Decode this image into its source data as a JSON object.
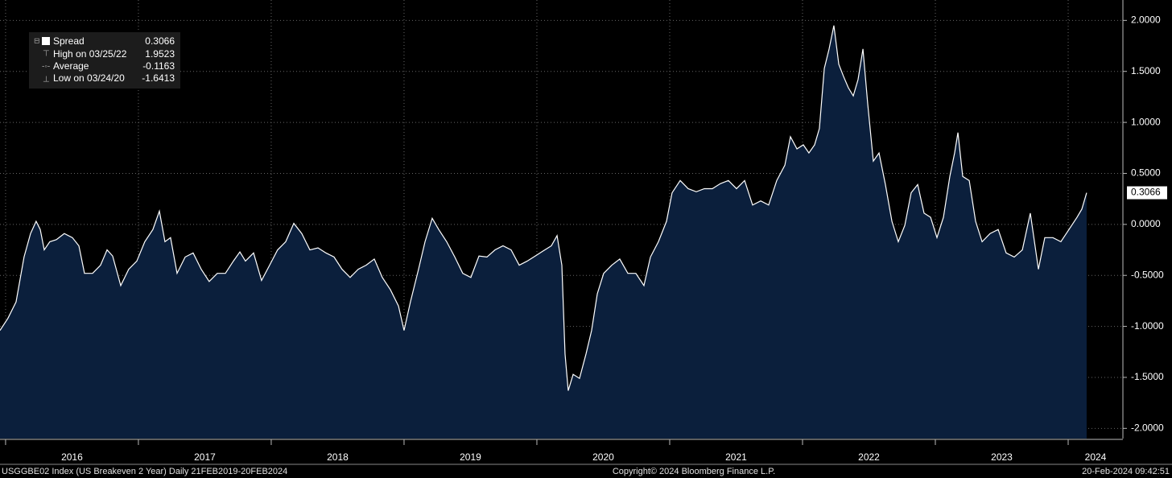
{
  "chart_data": {
    "type": "area",
    "legend": {
      "name": "Spread",
      "value": "0.3066",
      "high_label": "High on 03/25/22",
      "high_value": "1.9523",
      "average_label": "Average",
      "average_value": "-0.1163",
      "low_label": "Low on 03/24/20",
      "low_value": "-1.6413"
    },
    "last_value_label": "0.3066",
    "footer_left": "USGGBE02 Index (US Breakeven 2 Year)  Daily 21FEB2019-20FEB2024",
    "footer_center": "Copyright© 2024 Bloomberg Finance L.P.",
    "footer_right": "20-Feb-2024 09:42:51",
    "color": "#ffffff",
    "fill": "#0b1f3c",
    "grid": true,
    "xlim": [
      2015.958,
      2024.412
    ],
    "xticks": [
      2016,
      2017,
      2018,
      2019,
      2020,
      2021,
      2022,
      2023,
      2024
    ],
    "ylim": [
      -2.1,
      2.2
    ],
    "yticks": [
      {
        "value": -2,
        "label": "-2.0000"
      },
      {
        "value": -1.5,
        "label": "-1.5000"
      },
      {
        "value": -1,
        "label": "-1.0000"
      },
      {
        "value": -0.5,
        "label": "-0.5000"
      },
      {
        "value": 0,
        "label": "0.0000"
      },
      {
        "value": 0.5,
        "label": "0.5000"
      },
      {
        "value": 1,
        "label": "1.0000"
      },
      {
        "value": 1.5,
        "label": "1.5000"
      },
      {
        "value": 2,
        "label": "2.0000"
      }
    ],
    "series": [
      {
        "name": "Spread",
        "x": [
          2015.958,
          2016.018,
          2016.079,
          2016.139,
          2016.188,
          2016.23,
          2016.261,
          2016.291,
          2016.333,
          2016.382,
          2016.442,
          2016.503,
          2016.552,
          2016.594,
          2016.655,
          2016.715,
          2016.764,
          2016.806,
          2016.867,
          2016.927,
          2016.988,
          2017.048,
          2017.109,
          2017.158,
          2017.2,
          2017.242,
          2017.291,
          2017.352,
          2017.412,
          2017.473,
          2017.533,
          2017.594,
          2017.655,
          2017.715,
          2017.764,
          2017.806,
          2017.867,
          2017.927,
          2017.988,
          2018.048,
          2018.109,
          2018.17,
          2018.23,
          2018.291,
          2018.352,
          2018.412,
          2018.473,
          2018.533,
          2018.594,
          2018.655,
          2018.715,
          2018.776,
          2018.836,
          2018.897,
          2018.958,
          2019.0,
          2019.048,
          2019.109,
          2019.158,
          2019.212,
          2019.261,
          2019.321,
          2019.382,
          2019.442,
          2019.503,
          2019.564,
          2019.624,
          2019.685,
          2019.745,
          2019.806,
          2019.867,
          2019.927,
          2019.988,
          2020.048,
          2020.109,
          2020.152,
          2020.188,
          2020.212,
          2020.236,
          2020.273,
          2020.321,
          2020.37,
          2020.412,
          2020.455,
          2020.503,
          2020.564,
          2020.624,
          2020.685,
          2020.745,
          2020.806,
          2020.855,
          2020.915,
          2020.976,
          2021.018,
          2021.079,
          2021.139,
          2021.2,
          2021.261,
          2021.321,
          2021.382,
          2021.442,
          2021.503,
          2021.564,
          2021.624,
          2021.685,
          2021.745,
          2021.806,
          2021.867,
          2021.909,
          2021.958,
          2022.006,
          2022.048,
          2022.091,
          2022.127,
          2022.164,
          2022.2,
          2022.236,
          2022.273,
          2022.309,
          2022.345,
          2022.382,
          2022.418,
          2022.455,
          2022.491,
          2022.533,
          2022.576,
          2022.624,
          2022.673,
          2022.721,
          2022.77,
          2022.818,
          2022.867,
          2022.915,
          2022.964,
          2023.012,
          2023.061,
          2023.109,
          2023.145,
          2023.17,
          2023.206,
          2023.255,
          2023.303,
          2023.352,
          2023.412,
          2023.473,
          2023.533,
          2023.594,
          2023.655,
          2023.715,
          2023.776,
          2023.824,
          2023.885,
          2023.945,
          2024.006,
          2024.067,
          2024.103,
          2024.139
        ],
        "values": [
          -1.04,
          -0.92,
          -0.76,
          -0.32,
          -0.09,
          0.03,
          -0.05,
          -0.25,
          -0.17,
          -0.15,
          -0.09,
          -0.13,
          -0.21,
          -0.48,
          -0.48,
          -0.4,
          -0.25,
          -0.31,
          -0.6,
          -0.44,
          -0.36,
          -0.17,
          -0.05,
          0.13,
          -0.17,
          -0.13,
          -0.48,
          -0.32,
          -0.28,
          -0.44,
          -0.56,
          -0.48,
          -0.48,
          -0.36,
          -0.27,
          -0.36,
          -0.28,
          -0.55,
          -0.4,
          -0.25,
          -0.17,
          0.01,
          -0.09,
          -0.25,
          -0.23,
          -0.28,
          -0.32,
          -0.44,
          -0.52,
          -0.44,
          -0.4,
          -0.34,
          -0.52,
          -0.64,
          -0.8,
          -1.04,
          -0.76,
          -0.44,
          -0.17,
          0.06,
          -0.05,
          -0.17,
          -0.32,
          -0.48,
          -0.52,
          -0.31,
          -0.32,
          -0.25,
          -0.21,
          -0.25,
          -0.4,
          -0.36,
          -0.31,
          -0.26,
          -0.21,
          -0.11,
          -0.4,
          -1.27,
          -1.63,
          -1.47,
          -1.51,
          -1.27,
          -1.04,
          -0.68,
          -0.48,
          -0.4,
          -0.34,
          -0.48,
          -0.48,
          -0.6,
          -0.32,
          -0.17,
          0.03,
          0.31,
          0.43,
          0.35,
          0.32,
          0.35,
          0.35,
          0.4,
          0.43,
          0.35,
          0.43,
          0.19,
          0.23,
          0.19,
          0.43,
          0.58,
          0.86,
          0.74,
          0.78,
          0.7,
          0.78,
          0.94,
          1.53,
          1.72,
          1.95,
          1.57,
          1.45,
          1.34,
          1.26,
          1.42,
          1.72,
          1.18,
          0.62,
          0.7,
          0.39,
          0.03,
          -0.17,
          -0.01,
          0.31,
          0.39,
          0.11,
          0.07,
          -0.13,
          0.07,
          0.47,
          0.7,
          0.9,
          0.47,
          0.43,
          0.03,
          -0.17,
          -0.09,
          -0.05,
          -0.28,
          -0.32,
          -0.25,
          0.11,
          -0.44,
          -0.13,
          -0.13,
          -0.17,
          -0.05,
          0.07,
          0.15,
          0.31
        ]
      }
    ]
  }
}
